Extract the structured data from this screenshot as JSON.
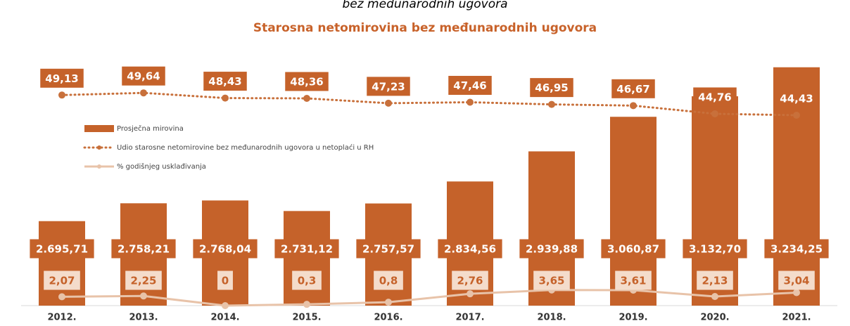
{
  "chart_data": {
    "type": "bar",
    "caption": "bez međunarodnih ugovora",
    "title": "Starosna netomirovina bez međunarodnih ugovora",
    "categories": [
      "2012.",
      "2013.",
      "2014.",
      "2015.",
      "2016.",
      "2017.",
      "2018.",
      "2019.",
      "2020.",
      "2021."
    ],
    "ylim": [
      2400,
      3300
    ],
    "y2lim": [
      0,
      60
    ],
    "legend": "left",
    "series": [
      {
        "name": "Prosječna mirovina",
        "type": "bar",
        "color": "#c5622a",
        "values": [
          2695.71,
          2758.21,
          2768.04,
          2731.12,
          2757.57,
          2834.56,
          2939.88,
          3060.87,
          3132.7,
          3234.25
        ],
        "value_labels": [
          "2.695,71",
          "2.758,21",
          "2.768,04",
          "2.731,12",
          "2.757,57",
          "2.834,56",
          "2.939,88",
          "3.060,87",
          "3.132,70",
          "3.234,25"
        ]
      },
      {
        "name": "Udio starosne netomirovine bez međunarodnih ugovora u netoplaći u RH",
        "type": "line",
        "style": "dotted",
        "axis": "y2",
        "color": "#c8703b",
        "values": [
          49.13,
          49.64,
          48.43,
          48.36,
          47.23,
          47.46,
          46.95,
          46.67,
          44.76,
          44.43
        ],
        "value_labels": [
          "49,13",
          "49,64",
          "48,43",
          "48,36",
          "47,23",
          "47,46",
          "46,95",
          "46,67",
          "44,76",
          "44,43"
        ]
      },
      {
        "name": "% godišnjeg usklađivanja",
        "type": "line",
        "style": "solid",
        "axis": "y2",
        "color": "#e8c3a9",
        "values": [
          2.07,
          2.25,
          0,
          0.3,
          0.8,
          2.76,
          3.65,
          3.61,
          2.13,
          3.04
        ],
        "value_labels": [
          "2,07",
          "2,25",
          "0",
          "0,3",
          "0,8",
          "2,76",
          "3,65",
          "3,61",
          "2,13",
          "3,04"
        ]
      }
    ]
  }
}
